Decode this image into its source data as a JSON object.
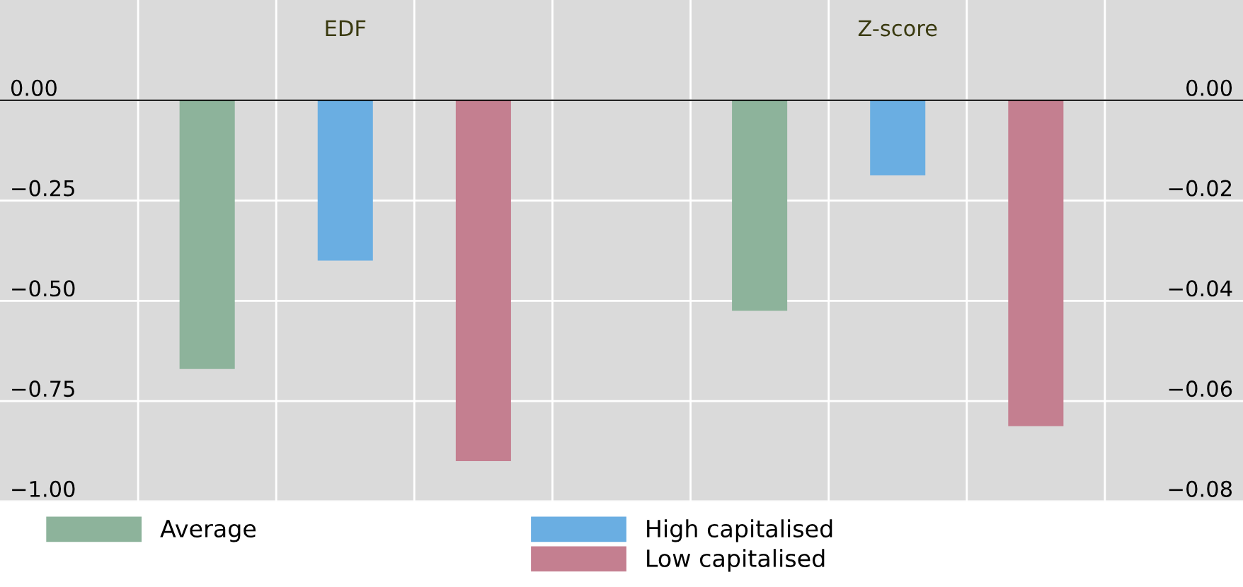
{
  "chart_data": [
    {
      "type": "bar",
      "categories": [
        "EDF"
      ],
      "ylim": [
        -1.0,
        0.25
      ],
      "yticks": [
        {
          "value": 0,
          "label": "0.00"
        },
        {
          "value": -0.25,
          "label": "−0.25"
        },
        {
          "value": -0.5,
          "label": "−0.50"
        },
        {
          "value": -0.75,
          "label": "−0.75"
        },
        {
          "value": -1.0,
          "label": "−1.00"
        }
      ],
      "grid": true,
      "legend": "bottom",
      "ref_lines": [
        {
          "axis": "y",
          "value": 0,
          "color": "#000000"
        }
      ],
      "series": [
        {
          "name": "Average",
          "color": "#8db39b",
          "values": [
            -0.67
          ]
        },
        {
          "name": "High capitalised",
          "color": "#6aaee2",
          "values": [
            -0.4
          ]
        },
        {
          "name": "Low capitalised",
          "color": "#c47f90",
          "values": [
            -0.9
          ]
        }
      ]
    },
    {
      "type": "bar",
      "categories": [
        "Z-score"
      ],
      "ylim": [
        -0.08,
        0.02
      ],
      "yticks": [
        {
          "value": 0,
          "label": "0.00"
        },
        {
          "value": -0.02,
          "label": "−0.02"
        },
        {
          "value": -0.04,
          "label": "−0.04"
        },
        {
          "value": -0.06,
          "label": "−0.06"
        },
        {
          "value": -0.08,
          "label": "−0.08"
        }
      ],
      "grid": true,
      "ref_lines": [
        {
          "axis": "y",
          "value": 0,
          "color": "#000000"
        }
      ],
      "series": [
        {
          "color": "#8db39b",
          "values": [
            -0.042
          ]
        },
        {
          "color": "#6aaee2",
          "values": [
            -0.015
          ]
        },
        {
          "color": "#c47f90",
          "values": [
            -0.065
          ]
        }
      ]
    }
  ]
}
